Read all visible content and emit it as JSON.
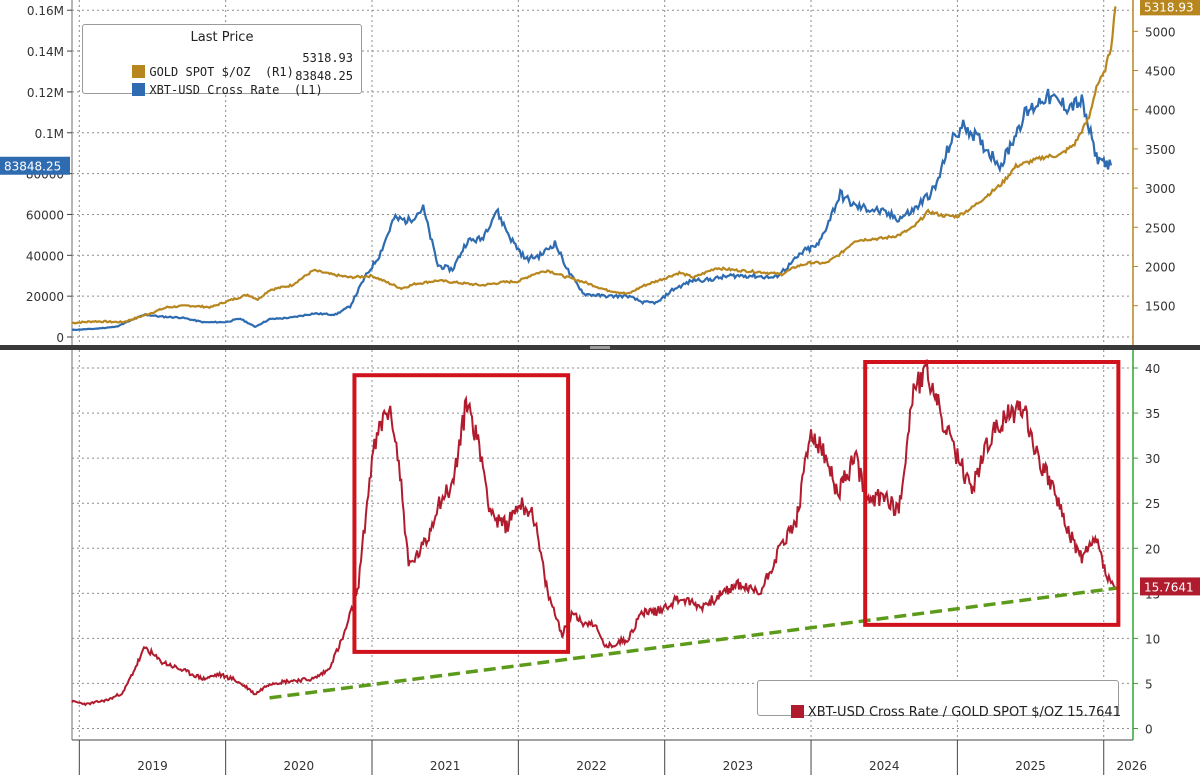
{
  "colors": {
    "gold": "#b8861e",
    "btc": "#2e6bb0",
    "ratio": "#b01c2e",
    "trend": "#5c9a1a",
    "highlight": "#d0121c",
    "lower_axis": "#2ea82e",
    "grid": "#8c8c8c"
  },
  "legend_top": {
    "title": "Last Price",
    "items": [
      {
        "label": "GOLD SPOT $/OZ  (R1)",
        "value": "5318.93"
      },
      {
        "label": "XBT-USD Cross Rate  (L1)",
        "value": "83848.25"
      }
    ]
  },
  "legend_bottom": {
    "label": "XBT-USD Cross Rate / GOLD SPOT $/OZ 15.7641"
  },
  "flags": {
    "gold_last": "5318.93",
    "btc_last": "83848.25",
    "ratio_last": "15.7641"
  },
  "chart_data": [
    {
      "type": "line",
      "panel": "upper",
      "x_ticks": [
        "2019",
        "2020",
        "2021",
        "2022",
        "2023",
        "2024",
        "2025",
        "2026"
      ],
      "left_axis": {
        "ticks": [
          "0",
          "20000",
          "40000",
          "60000",
          "80000",
          "0.1M",
          "0.12M",
          "0.14M",
          "0.16M"
        ],
        "ylim": [
          0,
          165000
        ]
      },
      "right_axis": {
        "ticks": [
          "1500",
          "2000",
          "2500",
          "3000",
          "3500",
          "4000",
          "4500",
          "5000"
        ],
        "ylim": [
          1100,
          5400
        ]
      },
      "x_range": [
        2018.95,
        2026.2
      ],
      "grid": true,
      "series": [
        {
          "name": "GOLD SPOT $/OZ (R1)",
          "axis": "right",
          "x": [
            2018.95,
            2019.1,
            2019.3,
            2019.45,
            2019.6,
            2019.75,
            2019.9,
            2020.0,
            2020.15,
            2020.22,
            2020.3,
            2020.45,
            2020.6,
            2020.72,
            2020.85,
            2021.0,
            2021.1,
            2021.2,
            2021.3,
            2021.45,
            2021.6,
            2021.75,
            2021.9,
            2022.0,
            2022.1,
            2022.2,
            2022.3,
            2022.45,
            2022.6,
            2022.75,
            2022.85,
            2023.0,
            2023.1,
            2023.2,
            2023.35,
            2023.5,
            2023.65,
            2023.8,
            2023.9,
            2024.0,
            2024.1,
            2024.2,
            2024.3,
            2024.4,
            2024.5,
            2024.6,
            2024.7,
            2024.8,
            2024.9,
            2025.0,
            2025.1,
            2025.2,
            2025.3,
            2025.4,
            2025.5,
            2025.6,
            2025.7,
            2025.8,
            2025.9,
            2025.95,
            2026.0,
            2026.05,
            2026.08
          ],
          "values": [
            1280,
            1300,
            1290,
            1380,
            1480,
            1500,
            1480,
            1550,
            1640,
            1580,
            1700,
            1760,
            1950,
            1900,
            1860,
            1880,
            1800,
            1720,
            1780,
            1820,
            1790,
            1760,
            1800,
            1810,
            1900,
            1950,
            1880,
            1800,
            1700,
            1650,
            1750,
            1850,
            1920,
            1860,
            1980,
            1950,
            1930,
            1900,
            2000,
            2050,
            2040,
            2160,
            2330,
            2350,
            2360,
            2400,
            2500,
            2700,
            2650,
            2640,
            2750,
            2900,
            3050,
            3280,
            3340,
            3400,
            3420,
            3560,
            3900,
            4300,
            4450,
            4800,
            5318.93
          ]
        },
        {
          "name": "XBT-USD Cross Rate (L1)",
          "axis": "left",
          "x": [
            2018.95,
            2019.1,
            2019.25,
            2019.45,
            2019.55,
            2019.7,
            2019.85,
            2020.0,
            2020.1,
            2020.2,
            2020.3,
            2020.45,
            2020.6,
            2020.75,
            2020.85,
            2020.95,
            2021.05,
            2021.15,
            2021.25,
            2021.35,
            2021.45,
            2021.55,
            2021.65,
            2021.75,
            2021.85,
            2021.95,
            2022.05,
            2022.15,
            2022.25,
            2022.35,
            2022.45,
            2022.6,
            2022.75,
            2022.85,
            2022.95,
            2023.05,
            2023.2,
            2023.3,
            2023.45,
            2023.6,
            2023.75,
            2023.85,
            2023.95,
            2024.05,
            2024.2,
            2024.3,
            2024.45,
            2024.6,
            2024.7,
            2024.85,
            2024.95,
            2025.05,
            2025.15,
            2025.3,
            2025.45,
            2025.6,
            2025.75,
            2025.85,
            2025.95,
            2026.05
          ],
          "values": [
            3500,
            4000,
            5000,
            11000,
            10000,
            9500,
            7200,
            7300,
            9000,
            5000,
            8700,
            9500,
            11500,
            11000,
            15000,
            29000,
            40000,
            58000,
            57000,
            63000,
            35000,
            33000,
            47000,
            48000,
            62000,
            48000,
            38000,
            40000,
            46000,
            31000,
            21000,
            20000,
            20000,
            17000,
            16800,
            23000,
            28000,
            28000,
            30000,
            30000,
            29000,
            35000,
            42000,
            45000,
            70000,
            64000,
            62000,
            58000,
            62000,
            73000,
            95000,
            104000,
            96000,
            84000,
            108000,
            118000,
            113000,
            115000,
            88000,
            84000
          ]
        }
      ]
    },
    {
      "type": "line",
      "panel": "lower",
      "x_ticks": [
        "2019",
        "2020",
        "2021",
        "2022",
        "2023",
        "2024",
        "2025",
        "2026"
      ],
      "right_axis": {
        "ticks": [
          "0",
          "5",
          "10",
          "15",
          "20",
          "25",
          "30",
          "35",
          "40"
        ],
        "ylim": [
          -0.5,
          42
        ]
      },
      "x_range": [
        2018.95,
        2026.2
      ],
      "grid": true,
      "series": [
        {
          "name": "XBT-USD Cross Rate / GOLD SPOT $/OZ",
          "x": [
            2018.95,
            2019.05,
            2019.2,
            2019.3,
            2019.45,
            2019.55,
            2019.7,
            2019.85,
            2019.95,
            2020.05,
            2020.15,
            2020.2,
            2020.3,
            2020.45,
            2020.6,
            2020.7,
            2020.8,
            2020.9,
            2021.0,
            2021.05,
            2021.1,
            2021.15,
            2021.2,
            2021.25,
            2021.3,
            2021.38,
            2021.45,
            2021.55,
            2021.65,
            2021.75,
            2021.8,
            2021.85,
            2021.92,
            2022.0,
            2022.1,
            2022.2,
            2022.3,
            2022.38,
            2022.45,
            2022.5,
            2022.6,
            2022.75,
            2022.85,
            2022.95,
            2023.1,
            2023.25,
            2023.4,
            2023.5,
            2023.65,
            2023.8,
            2023.9,
            2024.0,
            2024.1,
            2024.18,
            2024.3,
            2024.4,
            2024.5,
            2024.6,
            2024.7,
            2024.8,
            2024.9,
            2025.0,
            2025.1,
            2025.2,
            2025.3,
            2025.45,
            2025.55,
            2025.65,
            2025.75,
            2025.85,
            2025.95,
            2026.02,
            2026.05,
            2026.08
          ],
          "values": [
            3.0,
            2.7,
            3.2,
            4.0,
            9.0,
            7.5,
            6.5,
            5.5,
            6.0,
            5.5,
            4.5,
            3.8,
            5.0,
            5.3,
            5.5,
            6.5,
            10.0,
            15.0,
            30.0,
            33.0,
            35.5,
            33.5,
            27.0,
            18.0,
            19.0,
            21.0,
            25.0,
            27.0,
            36.5,
            30.0,
            25.0,
            23.0,
            22.5,
            25.0,
            24.0,
            15.0,
            10.5,
            13.0,
            11.5,
            12.0,
            9.0,
            10.0,
            13.0,
            13.0,
            14.5,
            13.5,
            15.0,
            16.0,
            15.0,
            20.5,
            23.0,
            33.0,
            30.0,
            26.0,
            30.0,
            25.0,
            26.0,
            24.0,
            38.0,
            39.5,
            34.0,
            30.0,
            26.5,
            31.5,
            34.0,
            36.0,
            30.0,
            27.0,
            22.0,
            19.0,
            21.0,
            17.0,
            16.0,
            15.7641
          ]
        },
        {
          "name": "trendline",
          "x": [
            2020.3,
            2026.1
          ],
          "values": [
            3.4,
            15.6
          ]
        }
      ],
      "highlight_boxes": [
        {
          "x": [
            2020.88,
            2022.34
          ],
          "y": [
            8.5,
            39.2
          ]
        },
        {
          "x": [
            2024.37,
            2026.1
          ],
          "y": [
            11.5,
            42
          ]
        }
      ]
    }
  ]
}
